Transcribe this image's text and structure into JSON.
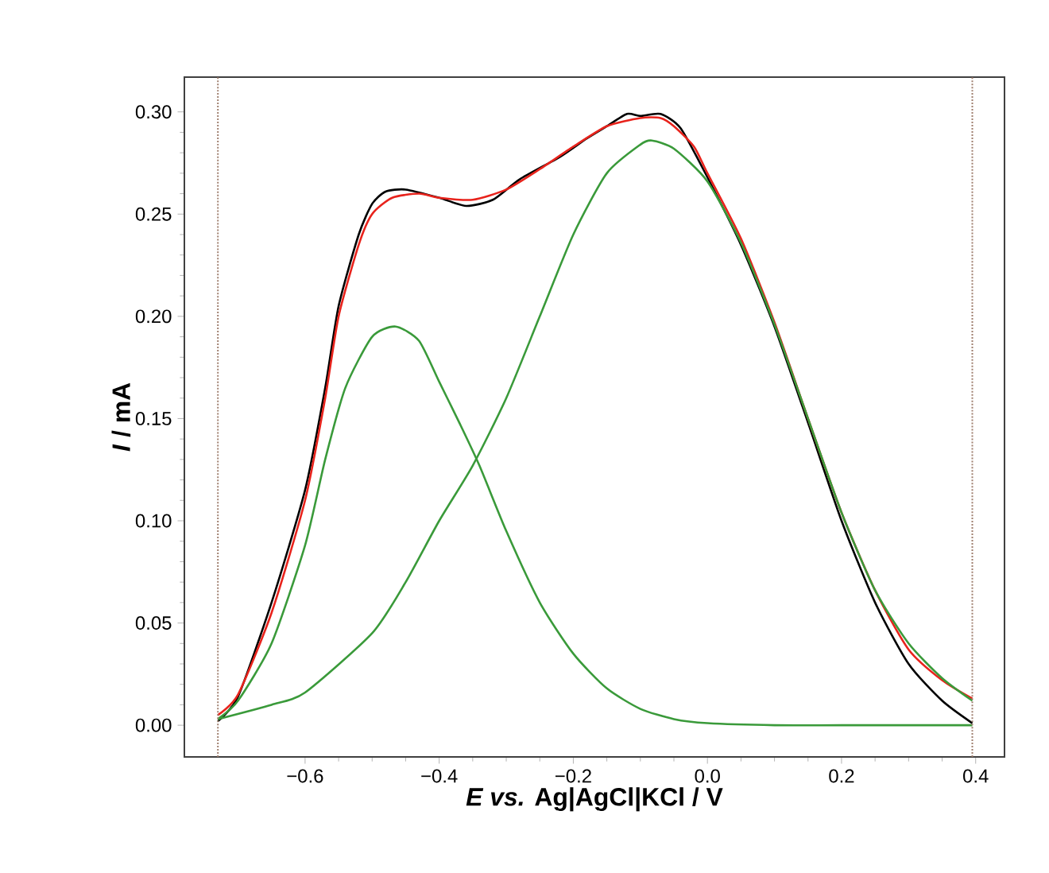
{
  "chart_data": {
    "type": "line",
    "xlabel": "*E vs.* Ag|AgCl|KCl / V",
    "ylabel": "*I* / mA",
    "xlim": [
      -0.78,
      0.443
    ],
    "ylim": [
      -0.0155,
      0.317
    ],
    "xticks": [
      {
        "value": -0.6,
        "label": "−0.6"
      },
      {
        "value": -0.4,
        "label": "−0.4"
      },
      {
        "value": -0.2,
        "label": "−0.2"
      },
      {
        "value": 0.0,
        "label": "0.0"
      },
      {
        "value": 0.2,
        "label": "0.2"
      },
      {
        "value": 0.4,
        "label": "0.4"
      }
    ],
    "yticks": [
      {
        "value": 0.0,
        "label": "0.00"
      },
      {
        "value": 0.05,
        "label": "0.05"
      },
      {
        "value": 0.1,
        "label": "0.10"
      },
      {
        "value": 0.15,
        "label": "0.15"
      },
      {
        "value": 0.2,
        "label": "0.20"
      },
      {
        "value": 0.25,
        "label": "0.25"
      },
      {
        "value": 0.3,
        "label": "0.30"
      }
    ],
    "grid": false,
    "line_style": "solid",
    "marker": "none",
    "ref_lines": [
      {
        "axis": "x",
        "value": -0.73,
        "color": "#a08070",
        "line_style": "dotted"
      },
      {
        "axis": "x",
        "value": 0.395,
        "color": "#a08070",
        "line_style": "dotted"
      }
    ],
    "series": [
      {
        "color": "#000000",
        "x": [
          -0.73,
          -0.7,
          -0.65,
          -0.6,
          -0.57,
          -0.55,
          -0.52,
          -0.5,
          -0.48,
          -0.45,
          -0.4,
          -0.36,
          -0.32,
          -0.28,
          -0.22,
          -0.18,
          -0.15,
          -0.12,
          -0.1,
          -0.07,
          -0.04,
          0.0,
          0.05,
          0.1,
          0.15,
          0.2,
          0.25,
          0.3,
          0.35,
          0.395
        ],
        "values": [
          0.002,
          0.014,
          0.06,
          0.115,
          0.165,
          0.205,
          0.24,
          0.255,
          0.261,
          0.262,
          0.258,
          0.254,
          0.257,
          0.267,
          0.278,
          0.287,
          0.293,
          0.299,
          0.298,
          0.299,
          0.292,
          0.268,
          0.235,
          0.195,
          0.148,
          0.1,
          0.06,
          0.03,
          0.012,
          0.001
        ]
      },
      {
        "color": "#e8231c",
        "x": [
          -0.73,
          -0.7,
          -0.65,
          -0.6,
          -0.57,
          -0.55,
          -0.52,
          -0.5,
          -0.47,
          -0.43,
          -0.4,
          -0.35,
          -0.3,
          -0.25,
          -0.2,
          -0.15,
          -0.1,
          -0.07,
          -0.05,
          -0.02,
          0.0,
          0.05,
          0.1,
          0.15,
          0.2,
          0.25,
          0.3,
          0.35,
          0.395
        ],
        "values": [
          0.005,
          0.015,
          0.055,
          0.11,
          0.16,
          0.2,
          0.235,
          0.25,
          0.258,
          0.26,
          0.258,
          0.257,
          0.262,
          0.272,
          0.283,
          0.293,
          0.297,
          0.297,
          0.293,
          0.283,
          0.27,
          0.238,
          0.197,
          0.15,
          0.104,
          0.066,
          0.037,
          0.022,
          0.013
        ]
      },
      {
        "color": "#3a9a3a",
        "x": [
          -0.73,
          -0.7,
          -0.65,
          -0.6,
          -0.57,
          -0.54,
          -0.5,
          -0.465,
          -0.43,
          -0.4,
          -0.37,
          -0.34,
          -0.3,
          -0.25,
          -0.2,
          -0.15,
          -0.1,
          -0.05,
          0.0,
          0.1,
          0.2,
          0.395
        ],
        "values": [
          0.003,
          0.012,
          0.04,
          0.088,
          0.13,
          0.165,
          0.19,
          0.195,
          0.188,
          0.168,
          0.148,
          0.127,
          0.095,
          0.06,
          0.035,
          0.018,
          0.008,
          0.003,
          0.001,
          0.0,
          0.0,
          0.0
        ]
      },
      {
        "color": "#3a9a3a",
        "x": [
          -0.73,
          -0.65,
          -0.6,
          -0.5,
          -0.45,
          -0.4,
          -0.35,
          -0.3,
          -0.25,
          -0.2,
          -0.15,
          -0.1,
          -0.083,
          -0.05,
          0.0,
          0.05,
          0.1,
          0.15,
          0.2,
          0.25,
          0.3,
          0.35,
          0.395
        ],
        "values": [
          0.003,
          0.01,
          0.016,
          0.045,
          0.07,
          0.1,
          0.127,
          0.16,
          0.2,
          0.24,
          0.27,
          0.284,
          0.286,
          0.282,
          0.266,
          0.236,
          0.196,
          0.15,
          0.104,
          0.066,
          0.04,
          0.023,
          0.012
        ]
      }
    ]
  }
}
